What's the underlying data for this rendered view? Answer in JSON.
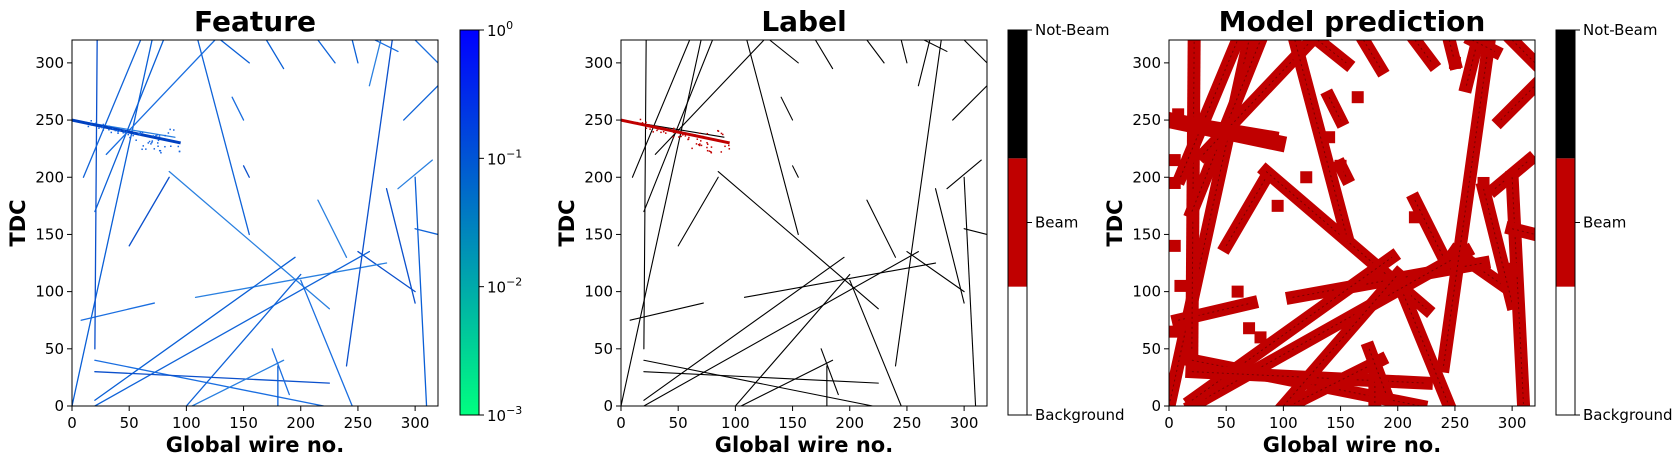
{
  "colors": {
    "feature_low": "#00ff80",
    "feature_high": "#0000ff",
    "beam": "#c00000",
    "not_beam": "#000000",
    "background": "#ffffff"
  },
  "chart_data": [
    {
      "type": "heatmap",
      "title": "Feature",
      "xlabel": "Global wire no.",
      "ylabel": "TDC",
      "xlim": [
        0,
        320
      ],
      "ylim": [
        0,
        320
      ],
      "xticks": [
        "0",
        "50",
        "100",
        "150",
        "200",
        "250",
        "300"
      ],
      "yticks": [
        "0",
        "50",
        "100",
        "150",
        "200",
        "250",
        "300"
      ],
      "colorbar": {
        "scale": "log",
        "range": [
          0.001,
          1
        ],
        "ticks": [
          {
            "value": 1,
            "base": "10",
            "exp": "0"
          },
          {
            "value": 0.1,
            "base": "10",
            "exp": "−1"
          },
          {
            "value": 0.01,
            "base": "10",
            "exp": "−2"
          },
          {
            "value": 0.001,
            "base": "10",
            "exp": "−3"
          }
        ]
      },
      "tracks": [
        {
          "x0": 0,
          "y0": 0,
          "x1": 70,
          "y1": 320
        },
        {
          "x0": 8,
          "y0": 75,
          "x1": 72,
          "y1": 90
        },
        {
          "x0": 20,
          "y0": 50,
          "x1": 22,
          "y1": 320
        },
        {
          "x0": 0,
          "y0": 250,
          "x1": 90,
          "y1": 235
        },
        {
          "x0": 10,
          "y0": 200,
          "x1": 60,
          "y1": 320
        },
        {
          "x0": 20,
          "y0": 170,
          "x1": 80,
          "y1": 320
        },
        {
          "x0": 30,
          "y0": 220,
          "x1": 125,
          "y1": 320
        },
        {
          "x0": 50,
          "y0": 140,
          "x1": 85,
          "y1": 200
        },
        {
          "x0": 85,
          "y0": 205,
          "x1": 225,
          "y1": 85
        },
        {
          "x0": 110,
          "y0": 320,
          "x1": 155,
          "y1": 150
        },
        {
          "x0": 130,
          "y0": 320,
          "x1": 155,
          "y1": 300
        },
        {
          "x0": 140,
          "y0": 270,
          "x1": 150,
          "y1": 250
        },
        {
          "x0": 150,
          "y0": 210,
          "x1": 155,
          "y1": 200
        },
        {
          "x0": 215,
          "y0": 180,
          "x1": 240,
          "y1": 130
        },
        {
          "x0": 215,
          "y0": 320,
          "x1": 230,
          "y1": 300
        },
        {
          "x0": 245,
          "y0": 320,
          "x1": 250,
          "y1": 300
        },
        {
          "x0": 200,
          "y0": 110,
          "x1": 245,
          "y1": 0
        },
        {
          "x0": 250,
          "y0": 135,
          "x1": 300,
          "y1": 100
        },
        {
          "x0": 108,
          "y0": 95,
          "x1": 275,
          "y1": 125
        },
        {
          "x0": 20,
          "y0": 0,
          "x1": 260,
          "y1": 135
        },
        {
          "x0": 20,
          "y0": 5,
          "x1": 195,
          "y1": 130
        },
        {
          "x0": 20,
          "y0": 40,
          "x1": 220,
          "y1": 0
        },
        {
          "x0": 20,
          "y0": 30,
          "x1": 225,
          "y1": 20
        },
        {
          "x0": 105,
          "y0": 0,
          "x1": 185,
          "y1": 40
        },
        {
          "x0": 100,
          "y0": 0,
          "x1": 200,
          "y1": 115
        },
        {
          "x0": 180,
          "y0": 35,
          "x1": 180,
          "y1": 0
        },
        {
          "x0": 175,
          "y0": 50,
          "x1": 190,
          "y1": 10
        },
        {
          "x0": 275,
          "y0": 190,
          "x1": 300,
          "y1": 90
        },
        {
          "x0": 285,
          "y0": 190,
          "x1": 315,
          "y1": 215
        },
        {
          "x0": 290,
          "y0": 250,
          "x1": 320,
          "y1": 280
        },
        {
          "x0": 300,
          "y0": 200,
          "x1": 310,
          "y1": 0
        },
        {
          "x0": 300,
          "y0": 320,
          "x1": 320,
          "y1": 300
        },
        {
          "x0": 240,
          "y0": 35,
          "x1": 280,
          "y1": 320
        },
        {
          "x0": 270,
          "y0": 320,
          "x1": 260,
          "y1": 280
        },
        {
          "x0": 300,
          "y0": 155,
          "x1": 320,
          "y1": 150
        },
        {
          "x0": 170,
          "y0": 320,
          "x1": 185,
          "y1": 295
        },
        {
          "x0": 265,
          "y0": 320,
          "x1": 285,
          "y1": 310
        }
      ],
      "beam_region": {
        "x0": 0,
        "y0": 250,
        "x1": 95,
        "y1": 230
      },
      "beam_cluster": [
        {
          "x": 18,
          "y": 248
        },
        {
          "x": 24,
          "y": 245
        },
        {
          "x": 30,
          "y": 242
        },
        {
          "x": 36,
          "y": 242
        },
        {
          "x": 42,
          "y": 240
        },
        {
          "x": 48,
          "y": 238
        },
        {
          "x": 54,
          "y": 236
        },
        {
          "x": 60,
          "y": 238
        },
        {
          "x": 66,
          "y": 232
        },
        {
          "x": 72,
          "y": 236
        },
        {
          "x": 78,
          "y": 230
        },
        {
          "x": 84,
          "y": 240
        },
        {
          "x": 90,
          "y": 226
        },
        {
          "x": 75,
          "y": 222
        },
        {
          "x": 65,
          "y": 228
        }
      ]
    },
    {
      "type": "heatmap",
      "title": "Label",
      "xlabel": "Global wire no.",
      "ylabel": "TDC",
      "xlim": [
        0,
        320
      ],
      "ylim": [
        0,
        320
      ],
      "xticks": [
        "0",
        "50",
        "100",
        "150",
        "200",
        "250",
        "300"
      ],
      "yticks": [
        "0",
        "50",
        "100",
        "150",
        "200",
        "250",
        "300"
      ],
      "colorbar": {
        "scale": "categorical",
        "categories": [
          "Background",
          "Beam",
          "Not-Beam"
        ]
      }
    },
    {
      "type": "heatmap",
      "title": "Model prediction",
      "xlabel": "Global wire no.",
      "ylabel": "TDC",
      "xlim": [
        0,
        320
      ],
      "ylim": [
        0,
        320
      ],
      "xticks": [
        "0",
        "50",
        "100",
        "150",
        "200",
        "250",
        "300"
      ],
      "yticks": [
        "0",
        "50",
        "100",
        "150",
        "200",
        "250",
        "300"
      ],
      "colorbar": {
        "scale": "categorical",
        "categories": [
          "Background",
          "Beam",
          "Not-Beam"
        ]
      },
      "blobs": [
        {
          "x": 8,
          "y": 255
        },
        {
          "x": 5,
          "y": 215
        },
        {
          "x": 5,
          "y": 195
        },
        {
          "x": 5,
          "y": 140
        },
        {
          "x": 10,
          "y": 105
        },
        {
          "x": 5,
          "y": 65
        },
        {
          "x": 60,
          "y": 100
        },
        {
          "x": 70,
          "y": 68
        },
        {
          "x": 80,
          "y": 60
        },
        {
          "x": 140,
          "y": 235
        },
        {
          "x": 150,
          "y": 210
        },
        {
          "x": 165,
          "y": 270
        },
        {
          "x": 250,
          "y": 300
        },
        {
          "x": 275,
          "y": 195
        },
        {
          "x": 300,
          "y": 120
        },
        {
          "x": 120,
          "y": 200
        },
        {
          "x": 95,
          "y": 175
        },
        {
          "x": 215,
          "y": 165
        }
      ]
    }
  ]
}
